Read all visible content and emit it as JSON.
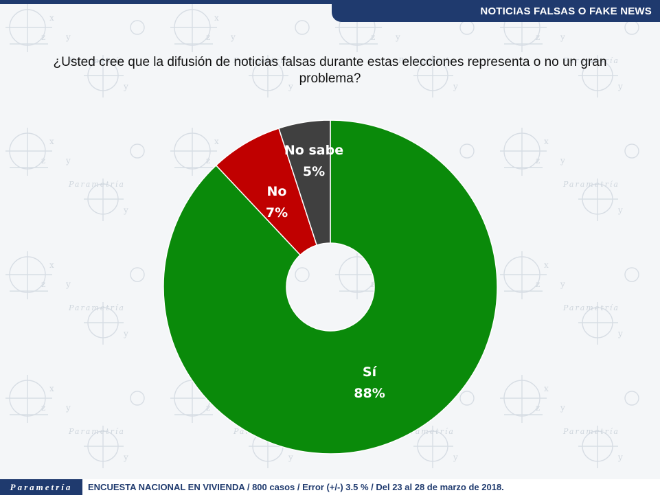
{
  "header": {
    "title": "NOTICIAS FALSAS O FAKE NEWS"
  },
  "question": "¿Usted cree que la difusión de noticias falsas durante estas elecciones representa o no un gran problema?",
  "chart_data": {
    "type": "pie",
    "subtype": "donut",
    "slices": [
      {
        "label": "Sí",
        "value": 88,
        "value_label": "88%",
        "color": "#0a8a0a"
      },
      {
        "label": "No",
        "value": 7,
        "value_label": "7%",
        "color": "#c00000"
      },
      {
        "label": "No sabe",
        "value": 5,
        "value_label": "5%",
        "color": "#404040"
      }
    ],
    "start": "top",
    "direction": "clockwise"
  },
  "footer": {
    "logo": "Parametría",
    "note": "ENCUESTA NACIONAL EN VIVIENDA / 800 casos / Error (+/-) 3.5 % / Del 23 al 28 de marzo de 2018."
  },
  "colors": {
    "brand": "#1f3a6e"
  }
}
